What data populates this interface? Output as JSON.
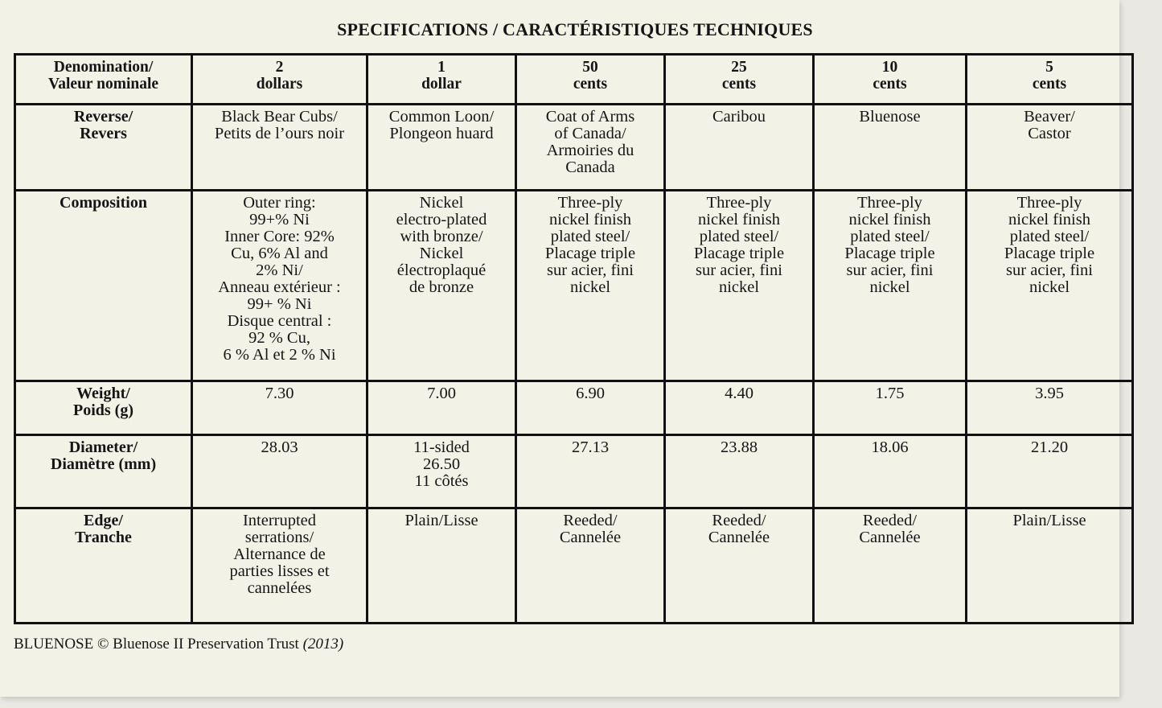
{
  "title": "SPECIFICATIONS / CARACTÉRISTIQUES TECHNIQUES",
  "table": {
    "header": {
      "label": "Denomination/\nValeur nominale",
      "columns": [
        "2\ndollars",
        "1\ndollar",
        "50\ncents",
        "25\ncents",
        "10\ncents",
        "5\ncents"
      ]
    },
    "rows": [
      {
        "label": "Reverse/\nRevers",
        "cells": [
          "Black Bear Cubs/\nPetits de l’ours noir",
          "Common Loon/\nPlongeon huard",
          "Coat of Arms\nof Canada/\nArmoiries du\nCanada",
          "Caribou",
          "Bluenose",
          "Beaver/\nCastor"
        ]
      },
      {
        "label": "Composition",
        "cells": [
          "Outer ring:\n99+% Ni\nInner Core: 92%\nCu, 6% Al and\n2% Ni/\nAnneau extérieur :\n99+ % Ni\nDisque central :\n92 % Cu,\n6 % Al et 2 % Ni",
          "Nickel\nelectro-plated\nwith bronze/\nNickel\nélectroplaqué\nde bronze",
          "Three-ply\nnickel finish\nplated steel/\nPlacage triple\nsur acier, fini\nnickel",
          "Three-ply\nnickel finish\nplated steel/\nPlacage triple\nsur acier, fini\nnickel",
          "Three-ply\nnickel finish\nplated steel/\nPlacage triple\nsur acier, fini\nnickel",
          "Three-ply\nnickel finish\nplated steel/\nPlacage triple\nsur acier, fini\nnickel"
        ]
      },
      {
        "label": "Weight/\nPoids (g)",
        "cells": [
          "7.30",
          "7.00",
          "6.90",
          "4.40",
          "1.75",
          "3.95"
        ]
      },
      {
        "label": "Diameter/\nDiamètre  (mm)",
        "cells": [
          "28.03",
          "11-sided\n26.50\n11 côtés",
          "27.13",
          "23.88",
          "18.06",
          "21.20"
        ]
      },
      {
        "label": "Edge/\nTranche",
        "cells": [
          "Interrupted\nserrations/\nAlternance de\nparties lisses et\ncannelées",
          "Plain/Lisse",
          "Reeded/\nCannelée",
          "Reeded/\nCannelée",
          "Reeded/\nCannelée",
          "Plain/Lisse"
        ]
      }
    ]
  },
  "footer": {
    "text": "BLUENOSE © Bluenose II Preservation Trust",
    "year": "(2013)"
  }
}
